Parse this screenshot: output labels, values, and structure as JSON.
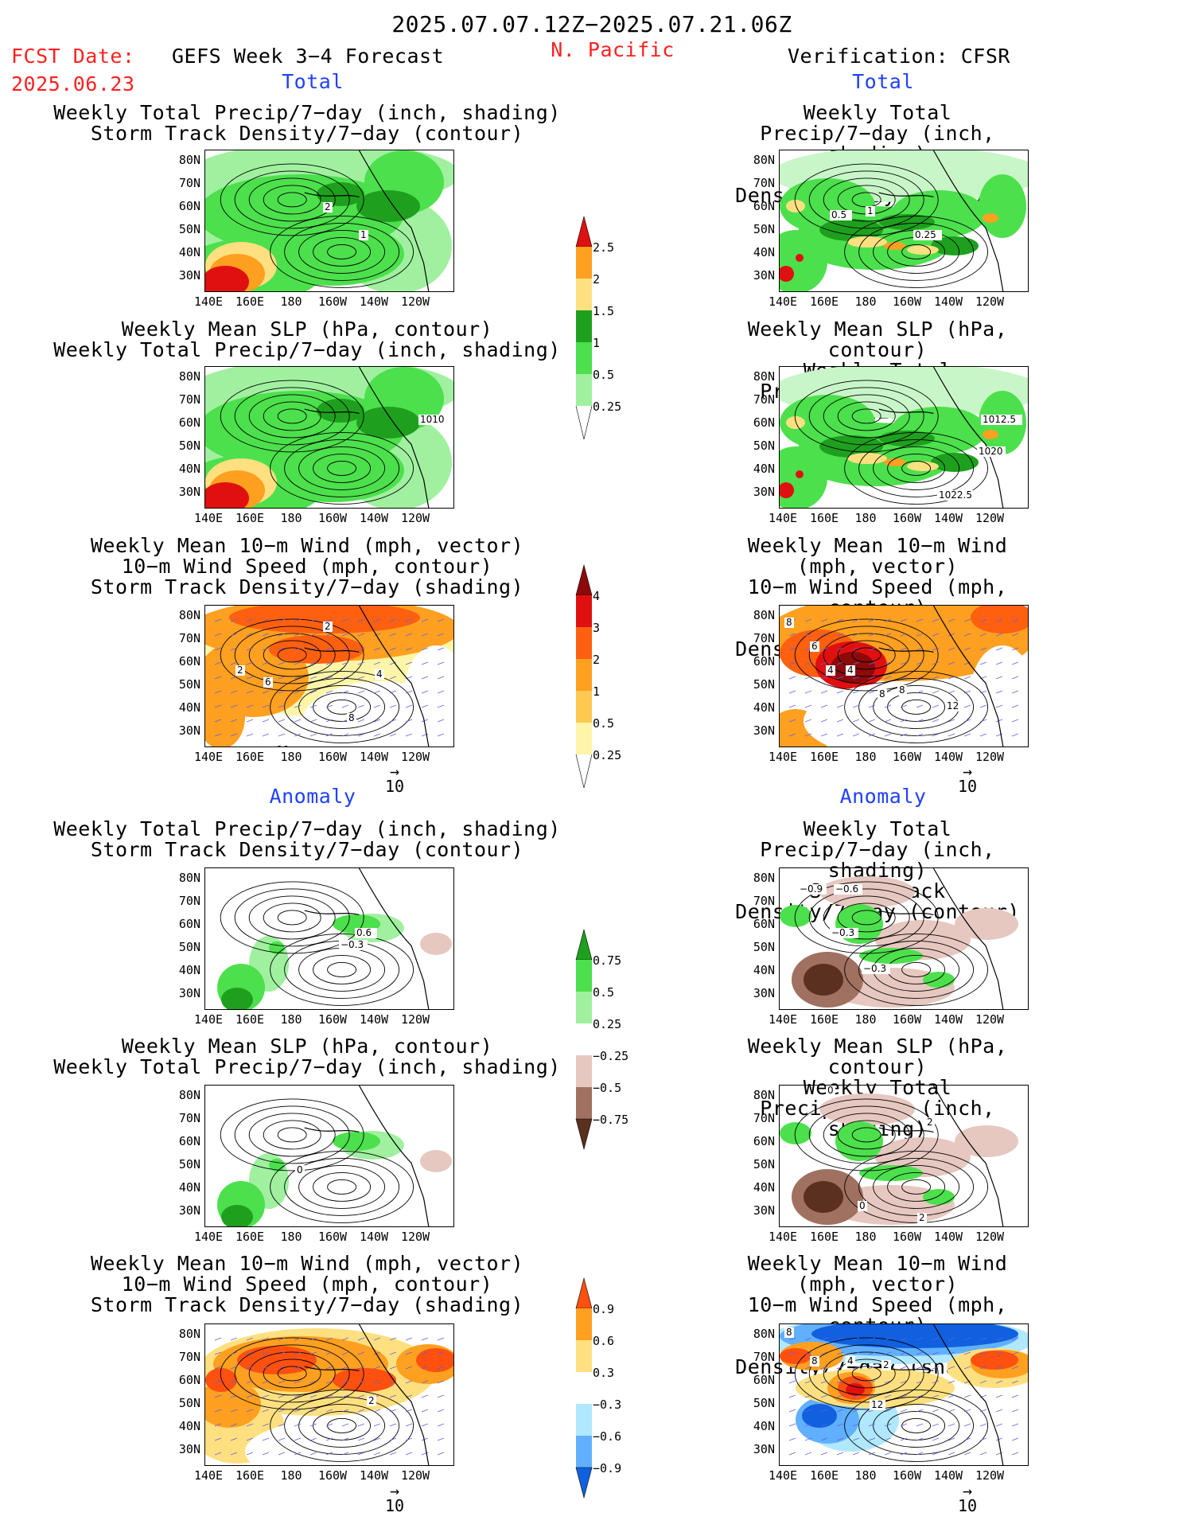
{
  "header": {
    "date_range": "2025.07.07.12Z−2025.07.21.06Z",
    "fcst_label": "FCST Date:",
    "fcst_date": "2025.06.23",
    "model": "GEFS Week 3−4 Forecast",
    "region": "N. Pacific",
    "verification": "Verification: CFSR"
  },
  "sections": {
    "total": "Total",
    "anomaly": "Anomaly"
  },
  "titles": {
    "precip_track": [
      "Weekly Total Precip/7−day (inch, shading)",
      "Storm Track Density/7−day (contour)"
    ],
    "slp_precip": [
      "Weekly Mean SLP (hPa, contour)",
      "Weekly Total Precip/7−day (inch, shading)"
    ],
    "wind_track": [
      "Weekly Mean 10−m Wind (mph, vector)",
      "10−m Wind Speed (mph, contour)",
      "Storm Track Density/7−day (shading)"
    ]
  },
  "axes": {
    "lat_ticks": [
      "80N",
      "70N",
      "60N",
      "50N",
      "40N",
      "30N"
    ],
    "lon_ticks": [
      "140E",
      "160E",
      "180",
      "160W",
      "140W",
      "120W"
    ]
  },
  "vector_ref": "10",
  "colorbars": {
    "precip_total": [
      "2.5",
      "2",
      "1.5",
      "1",
      "0.5",
      "0.25"
    ],
    "track_total": [
      "4",
      "3",
      "2",
      "1",
      "0.5",
      "0.25"
    ],
    "precip_anom": [
      "0.75",
      "0.5",
      "0.25",
      "−0.25",
      "−0.5",
      "−0.75"
    ],
    "track_anom": [
      "0.9",
      "0.6",
      "0.3",
      "−0.3",
      "−0.6",
      "−0.9"
    ]
  },
  "contour_labels": {
    "p1": [
      "2",
      "1"
    ],
    "p2": [
      "0.5",
      "1",
      "0.25"
    ],
    "p3": [
      "1010"
    ],
    "p4": [
      "1012.5",
      "1020",
      "1022.5"
    ],
    "p5": [
      "2",
      "2",
      "6",
      "4",
      "8",
      "10"
    ],
    "p6": [
      "8",
      "6",
      "4",
      "4",
      "8",
      "8",
      "12"
    ],
    "p7": [
      "0.6",
      "−0.3"
    ],
    "p8": [
      "−0.9",
      "−0.6",
      "−0.3",
      "−0.3"
    ],
    "p9": [
      "0"
    ],
    "p10": [
      "0",
      "2",
      "0",
      "2"
    ],
    "p11": [
      "2"
    ],
    "p12": [
      "8",
      "8",
      "4",
      "2",
      "12"
    ]
  },
  "colors": {
    "green_light": "#a0f0a0",
    "green": "#4ce04c",
    "green_dark": "#1ea01e",
    "yellow": "#ffe080",
    "orange": "#ffa020",
    "red": "#e01010",
    "brown_light": "#e6c8c0",
    "brown": "#a07060",
    "brown_dark": "#5a3020",
    "blue_light": "#b0e8ff",
    "blue": "#60b0ff",
    "blue_dark": "#1060e0",
    "vector": "#6060e0"
  }
}
